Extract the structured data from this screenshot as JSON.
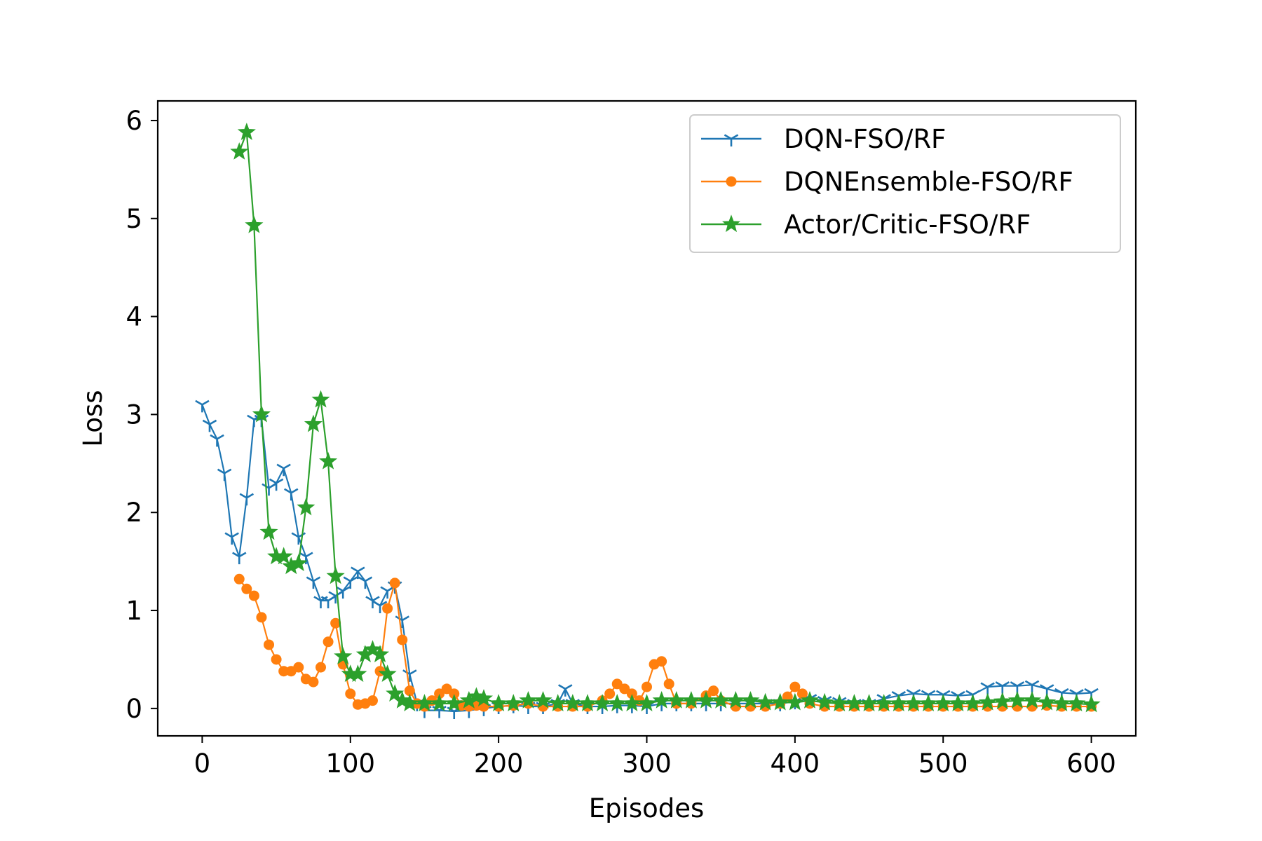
{
  "chart_data": {
    "type": "line",
    "title": "",
    "xlabel": "Episodes",
    "ylabel": "Loss",
    "xlim": [
      -30,
      630
    ],
    "ylim": [
      -0.28,
      6.2
    ],
    "xticks": [
      0,
      100,
      200,
      300,
      400,
      500,
      600
    ],
    "yticks": [
      0,
      1,
      2,
      3,
      4,
      5,
      6
    ],
    "grid": false,
    "legend_position": "top-right",
    "series": [
      {
        "name": "DQN-FSO/RF",
        "color": "#1f77b4",
        "marker": "tri_down",
        "x": [
          0,
          5,
          10,
          15,
          20,
          25,
          30,
          35,
          40,
          45,
          50,
          55,
          60,
          65,
          70,
          75,
          80,
          85,
          90,
          95,
          100,
          105,
          110,
          115,
          120,
          125,
          130,
          135,
          140,
          145,
          150,
          160,
          170,
          180,
          190,
          200,
          210,
          220,
          230,
          240,
          245,
          250,
          260,
          270,
          280,
          290,
          300,
          310,
          320,
          330,
          340,
          350,
          360,
          370,
          380,
          390,
          400,
          410,
          420,
          430,
          440,
          450,
          460,
          470,
          480,
          490,
          500,
          510,
          520,
          530,
          540,
          550,
          560,
          570,
          580,
          590,
          600
        ],
        "y": [
          3.1,
          2.9,
          2.75,
          2.4,
          1.75,
          1.55,
          2.15,
          2.95,
          2.95,
          2.25,
          2.3,
          2.45,
          2.2,
          1.75,
          1.55,
          1.3,
          1.1,
          1.1,
          1.15,
          1.2,
          1.3,
          1.4,
          1.3,
          1.1,
          1.05,
          1.2,
          1.25,
          0.9,
          0.35,
          0.05,
          -0.02,
          -0.02,
          -0.03,
          -0.02,
          0.0,
          0.02,
          0.03,
          0.02,
          0.02,
          0.05,
          0.2,
          0.05,
          0.02,
          0.02,
          0.03,
          0.03,
          0.02,
          0.05,
          0.05,
          0.05,
          0.05,
          0.05,
          0.05,
          0.05,
          0.05,
          0.05,
          0.07,
          0.1,
          0.08,
          0.07,
          0.05,
          0.05,
          0.1,
          0.13,
          0.15,
          0.14,
          0.14,
          0.13,
          0.14,
          0.22,
          0.23,
          0.23,
          0.24,
          0.2,
          0.16,
          0.15,
          0.16
        ]
      },
      {
        "name": "DQNEnsemble-FSO/RF",
        "color": "#ff7f0e",
        "marker": "circle",
        "x": [
          25,
          30,
          35,
          40,
          45,
          50,
          55,
          60,
          65,
          70,
          75,
          80,
          85,
          90,
          95,
          100,
          105,
          110,
          115,
          120,
          125,
          130,
          135,
          140,
          145,
          150,
          155,
          160,
          165,
          170,
          175,
          180,
          185,
          190,
          200,
          210,
          220,
          230,
          240,
          250,
          260,
          270,
          275,
          280,
          285,
          290,
          295,
          300,
          305,
          310,
          315,
          320,
          330,
          340,
          345,
          350,
          360,
          370,
          380,
          390,
          395,
          400,
          405,
          410,
          420,
          430,
          440,
          450,
          460,
          470,
          480,
          490,
          500,
          510,
          520,
          530,
          540,
          550,
          560,
          570,
          580,
          590,
          600
        ],
        "y": [
          1.32,
          1.22,
          1.15,
          0.93,
          0.65,
          0.5,
          0.38,
          0.38,
          0.42,
          0.3,
          0.27,
          0.42,
          0.68,
          0.87,
          0.45,
          0.15,
          0.04,
          0.05,
          0.08,
          0.38,
          1.02,
          1.28,
          0.7,
          0.18,
          0.05,
          0.02,
          0.08,
          0.15,
          0.2,
          0.15,
          0.03,
          0.02,
          0.03,
          0.02,
          0.02,
          0.03,
          0.05,
          0.02,
          0.02,
          0.02,
          0.02,
          0.08,
          0.15,
          0.25,
          0.2,
          0.15,
          0.08,
          0.22,
          0.45,
          0.48,
          0.25,
          0.05,
          0.05,
          0.13,
          0.18,
          0.08,
          0.02,
          0.02,
          0.02,
          0.05,
          0.12,
          0.22,
          0.15,
          0.05,
          0.02,
          0.02,
          0.02,
          0.02,
          0.02,
          0.02,
          0.02,
          0.02,
          0.02,
          0.02,
          0.02,
          0.02,
          0.02,
          0.02,
          0.02,
          0.03,
          0.02,
          0.02,
          0.02
        ]
      },
      {
        "name": "Actor/Critic-FSO/RF",
        "color": "#2ca02c",
        "marker": "star",
        "x": [
          25,
          30,
          35,
          40,
          45,
          50,
          55,
          60,
          65,
          70,
          75,
          80,
          85,
          90,
          95,
          100,
          105,
          110,
          115,
          120,
          125,
          130,
          135,
          140,
          150,
          160,
          170,
          180,
          185,
          190,
          200,
          210,
          220,
          230,
          240,
          250,
          260,
          270,
          280,
          290,
          300,
          310,
          320,
          330,
          340,
          350,
          360,
          370,
          380,
          390,
          400,
          410,
          420,
          430,
          440,
          450,
          460,
          470,
          480,
          490,
          500,
          510,
          520,
          530,
          540,
          550,
          560,
          570,
          580,
          590,
          600
        ],
        "y": [
          5.68,
          5.88,
          4.93,
          3.0,
          1.8,
          1.55,
          1.55,
          1.45,
          1.48,
          2.05,
          2.9,
          3.15,
          2.52,
          1.35,
          0.53,
          0.35,
          0.35,
          0.55,
          0.6,
          0.55,
          0.35,
          0.15,
          0.08,
          0.05,
          0.05,
          0.05,
          0.05,
          0.08,
          0.12,
          0.1,
          0.05,
          0.05,
          0.08,
          0.08,
          0.05,
          0.05,
          0.05,
          0.05,
          0.05,
          0.05,
          0.05,
          0.08,
          0.08,
          0.08,
          0.08,
          0.08,
          0.08,
          0.08,
          0.06,
          0.06,
          0.06,
          0.08,
          0.06,
          0.05,
          0.05,
          0.05,
          0.05,
          0.05,
          0.05,
          0.05,
          0.05,
          0.05,
          0.05,
          0.06,
          0.07,
          0.08,
          0.08,
          0.06,
          0.05,
          0.05,
          0.04
        ]
      }
    ]
  }
}
